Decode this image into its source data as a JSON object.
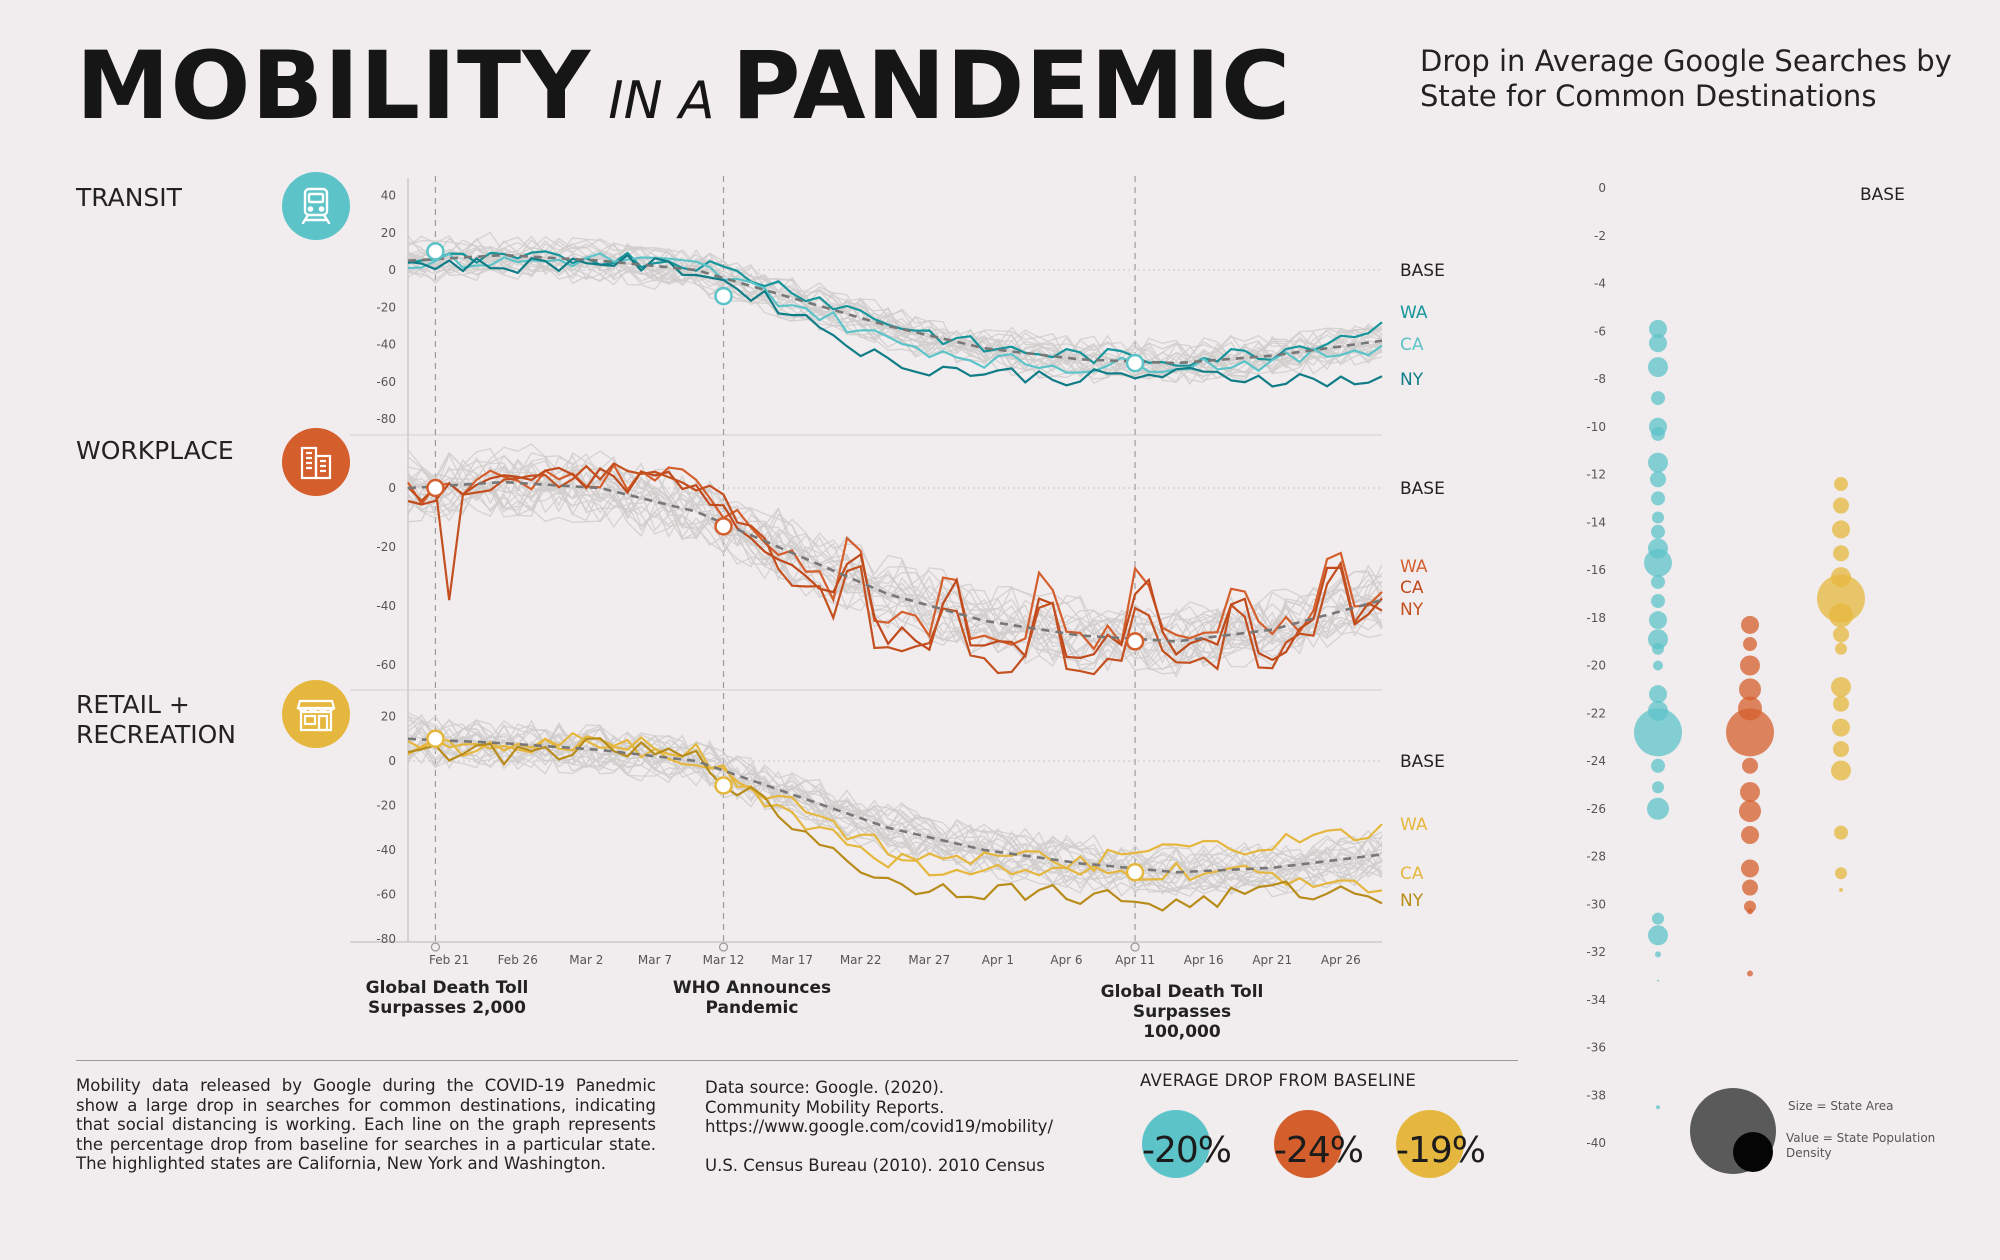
{
  "title": {
    "part1": "MOBILITY",
    "part2": "IN A",
    "part3": "PANDEMIC"
  },
  "subtitle": "Drop in Average Google Searches by State for Common Destinations",
  "colors": {
    "background": "#f1edee",
    "transit": "#5cc3c8",
    "transit_dark": "#16959b",
    "workplace": "#d45f2d",
    "workplace_dark": "#c04a1c",
    "retail": "#e5b73e",
    "retail_dark": "#b88c1a",
    "gray": "#cfcfcf",
    "trend": "#777777"
  },
  "categories": [
    {
      "key": "transit",
      "label": "TRANSIT",
      "icon": "train-icon"
    },
    {
      "key": "workplace",
      "label": "WORKPLACE",
      "icon": "office-building-icon"
    },
    {
      "key": "retail",
      "label": "RETAIL + RECREATION",
      "icon": "storefront-icon"
    }
  ],
  "base_label": "BASE",
  "state_labels": [
    "WA",
    "CA",
    "NY"
  ],
  "x_ticks": [
    "Feb 21",
    "Feb 26",
    "Mar 2",
    "Mar 7",
    "Mar 12",
    "Mar 17",
    "Mar 22",
    "Mar 27",
    "Apr 1",
    "Apr 6",
    "Apr 11",
    "Apr 16",
    "Apr 21",
    "Apr 26"
  ],
  "events": [
    {
      "line1": "Global Death Toll",
      "line2": "Surpasses 2,000"
    },
    {
      "line1": "WHO Announces",
      "line2": "Pandemic"
    },
    {
      "line1": "Global Death Toll",
      "line2": "Surpasses 100,000"
    }
  ],
  "chart_data": [
    {
      "type": "line",
      "name": "TRANSIT",
      "x_range": [
        "Feb 18",
        "Apr 29"
      ],
      "ylim": [
        -80,
        40
      ],
      "y_ticks": [
        40,
        20,
        0,
        -20,
        -40,
        -60,
        -80
      ],
      "event_dates": [
        "Feb 20",
        "Mar 12",
        "Apr 11"
      ],
      "x": [
        "Feb 18",
        "Feb 25",
        "Mar 3",
        "Mar 10",
        "Mar 17",
        "Mar 24",
        "Mar 31",
        "Apr 7",
        "Apr 14",
        "Apr 21",
        "Apr 29"
      ],
      "trend": [
        5,
        8,
        5,
        0,
        -15,
        -30,
        -42,
        -48,
        -50,
        -46,
        -38
      ],
      "series": [
        {
          "name": "WA",
          "values": [
            6,
            5,
            7,
            4,
            -10,
            -28,
            -42,
            -46,
            -48,
            -44,
            -30
          ]
        },
        {
          "name": "CA",
          "values": [
            5,
            4,
            6,
            2,
            -18,
            -38,
            -48,
            -52,
            -50,
            -50,
            -40
          ]
        },
        {
          "name": "NY",
          "values": [
            4,
            2,
            5,
            0,
            -22,
            -50,
            -55,
            -58,
            -56,
            -58,
            -60
          ]
        }
      ],
      "events_markers": [
        10,
        -14,
        -50
      ]
    },
    {
      "type": "line",
      "name": "WORKPLACE",
      "x_range": [
        "Feb 18",
        "Apr 29"
      ],
      "ylim": [
        -65,
        5
      ],
      "y_ticks": [
        0,
        -20,
        -40,
        -60
      ],
      "x": [
        "Feb 18",
        "Feb 25",
        "Mar 3",
        "Mar 10",
        "Mar 17",
        "Mar 24",
        "Mar 31",
        "Apr 7",
        "Apr 14",
        "Apr 21",
        "Apr 29"
      ],
      "trend": [
        0,
        2,
        0,
        -8,
        -22,
        -36,
        -45,
        -50,
        -52,
        -48,
        -38
      ],
      "series": [
        {
          "name": "WA",
          "values": [
            -2,
            3,
            4,
            2,
            -25,
            -45,
            -50,
            -52,
            -48,
            -50,
            -35
          ]
        },
        {
          "name": "CA",
          "values": [
            -5,
            2,
            3,
            1,
            -28,
            -50,
            -55,
            -55,
            -52,
            -54,
            -38
          ]
        },
        {
          "name": "NY",
          "values": [
            -3,
            2,
            4,
            3,
            -30,
            -55,
            -58,
            -60,
            -58,
            -58,
            -40
          ]
        }
      ],
      "events_markers": [
        0,
        -13,
        -52
      ]
    },
    {
      "type": "line",
      "name": "RETAIL + RECREATION",
      "x_range": [
        "Feb 18",
        "Apr 29"
      ],
      "ylim": [
        -80,
        20
      ],
      "y_ticks": [
        20,
        0,
        -20,
        -40,
        -60,
        -80
      ],
      "x": [
        "Feb 18",
        "Feb 25",
        "Mar 3",
        "Mar 10",
        "Mar 17",
        "Mar 24",
        "Mar 31",
        "Apr 7",
        "Apr 14",
        "Apr 21",
        "Apr 29"
      ],
      "trend": [
        10,
        8,
        5,
        0,
        -15,
        -30,
        -40,
        -46,
        -50,
        -48,
        -42
      ],
      "series": [
        {
          "name": "WA",
          "values": [
            8,
            6,
            10,
            4,
            -20,
            -40,
            -44,
            -46,
            -40,
            -38,
            -32
          ]
        },
        {
          "name": "CA",
          "values": [
            6,
            5,
            8,
            2,
            -25,
            -45,
            -50,
            -52,
            -50,
            -52,
            -55
          ]
        },
        {
          "name": "NY",
          "values": [
            5,
            3,
            6,
            1,
            -28,
            -55,
            -58,
            -60,
            -65,
            -58,
            -60
          ]
        }
      ],
      "events_markers": [
        10,
        -11,
        -50
      ]
    },
    {
      "type": "scatter",
      "name": "bubble distribution",
      "ylim": [
        -40,
        0
      ],
      "y_ticks": [
        0,
        -2,
        -4,
        -6,
        -8,
        -10,
        -12,
        -14,
        -16,
        -18,
        -20,
        -22,
        -24,
        -26,
        -28,
        -30,
        -32,
        -34,
        -36,
        -38,
        -40
      ],
      "base_label": "BASE",
      "columns": [
        {
          "name": "transit",
          "values": [
            -5.9,
            -6.5,
            -7.5,
            -8.8,
            -10,
            -10.3,
            -11.5,
            -12.2,
            -13,
            -13.8,
            -14.4,
            -15.1,
            -15.7,
            -16.5,
            -17.3,
            -18.1,
            -18.9,
            -19.3,
            -20,
            -21.2,
            -21.9,
            -22.8,
            -24.2,
            -25.1,
            -26,
            -30.6,
            -31.3,
            -32.1,
            -33.2,
            -38.5
          ],
          "sizes": [
            9,
            9,
            10,
            7,
            9,
            7,
            10,
            8,
            7,
            6,
            7,
            10,
            14,
            7,
            7,
            9,
            10,
            6,
            5,
            9,
            10,
            24,
            7,
            6,
            11,
            6,
            10,
            3,
            1,
            2
          ]
        },
        {
          "name": "workplace",
          "values": [
            -18.3,
            -19.1,
            -20,
            -21,
            -21.8,
            -22.8,
            -24.2,
            -25.3,
            -26.1,
            -27.1,
            -28.5,
            -29.3,
            -30.1,
            -30.3,
            -32.9
          ],
          "sizes": [
            9,
            7,
            10,
            11,
            12,
            24,
            8,
            10,
            11,
            9,
            9,
            8,
            6,
            3,
            3
          ]
        },
        {
          "name": "retail",
          "values": [
            -12.4,
            -13.3,
            -14.3,
            -15.3,
            -16.3,
            -17.2,
            -17.9,
            -18.7,
            -19.3,
            -20.9,
            -21.6,
            -22.6,
            -23.5,
            -24.4,
            -27,
            -28.7,
            -29.4
          ],
          "sizes": [
            7,
            8,
            9,
            8,
            10,
            24,
            12,
            8,
            6,
            10,
            8,
            9,
            8,
            10,
            7,
            6,
            2
          ]
        }
      ],
      "legend": {
        "size_label": "Size = State Area",
        "value_label_line1": "Value = State Population",
        "value_label_line2": "Density"
      }
    }
  ],
  "description": "Mobility data released by Google during the COVID-19 Panedmic show a large drop in searches for common destinations, indicating that social distancing is working. Each line on the graph represents the percentage drop from baseline for searches in a particular state. The highlighted states are California, New York and Washington.",
  "source": {
    "line1": "Data source: Google. (2020).",
    "line2": "Community Mobility Reports.",
    "line3": "https://www.google.com/covid19/mobility/",
    "line4": "U.S. Census Bureau (2010). 2010 Census"
  },
  "average_drop": {
    "title": "AVERAGE DROP FROM BASELINE",
    "values": [
      "-20%",
      "-24%",
      "-19%"
    ]
  }
}
